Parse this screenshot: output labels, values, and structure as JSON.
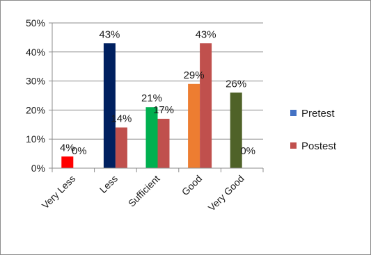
{
  "chart_data": {
    "type": "bar",
    "categories": [
      "Very Less",
      "Less",
      "Sufficient",
      "Good",
      "Very Good"
    ],
    "series": [
      {
        "name": "Pretest",
        "values": [
          4,
          43,
          21,
          29,
          26
        ],
        "labels": [
          "4%",
          "43%",
          "21%",
          "29%",
          "26%"
        ],
        "legend_color": "#4472c4",
        "bar_colors": [
          "#ff0000",
          "#002060",
          "#00b050",
          "#ed7d31",
          "#4f6228"
        ]
      },
      {
        "name": "Postest",
        "values": [
          0,
          14,
          17,
          43,
          0
        ],
        "labels": [
          "0%",
          "14%",
          "17%",
          "43%",
          "0%"
        ],
        "legend_color": "#c0504d",
        "bar_colors": [
          "#c0504d",
          "#c0504d",
          "#c0504d",
          "#c0504d",
          "#c0504d"
        ]
      }
    ],
    "yticks": [
      "0%",
      "10%",
      "20%",
      "30%",
      "40%",
      "50%"
    ],
    "ylim": [
      0,
      50
    ],
    "grid": true,
    "legend_position": "right"
  }
}
